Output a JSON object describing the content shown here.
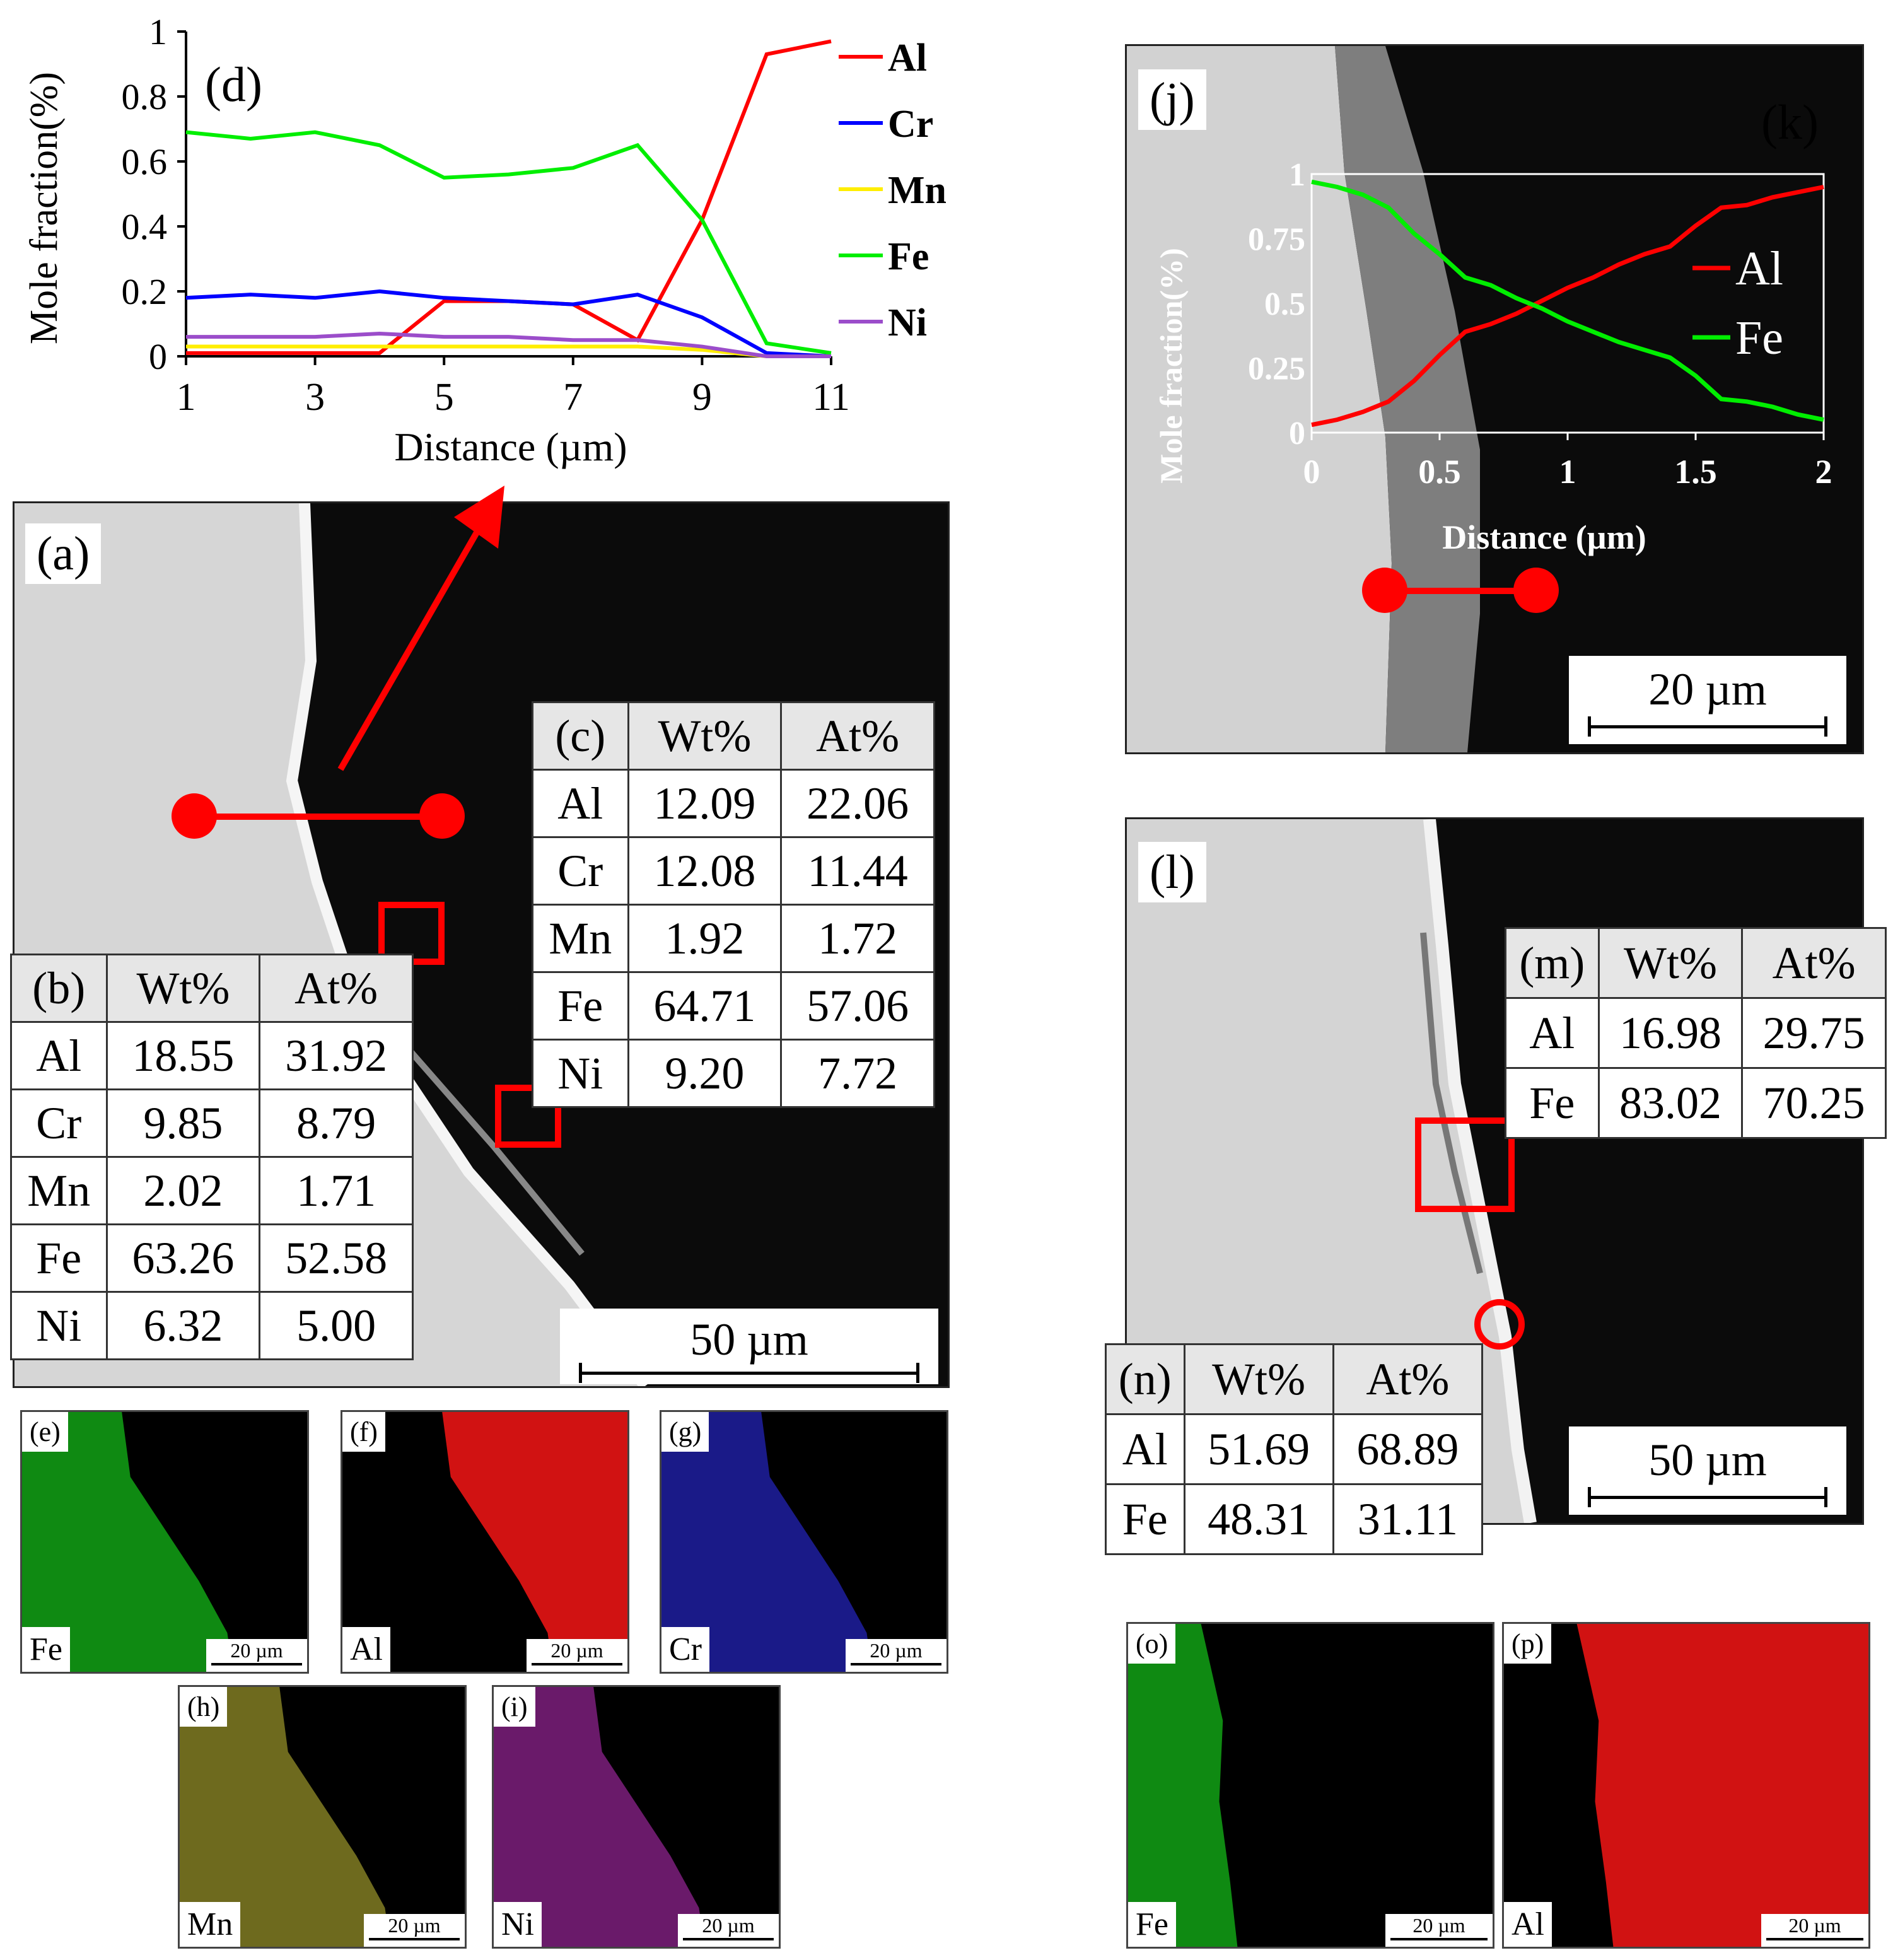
{
  "chart_data": [
    {
      "type": "line",
      "panel": "(d)",
      "xlabel": "Distance (µm)",
      "ylabel": "Mole fraction(%)",
      "xlim": [
        1,
        11
      ],
      "ylim": [
        0,
        1
      ],
      "x_ticks": [
        "1",
        "3",
        "5",
        "7",
        "9",
        "11"
      ],
      "y_ticks": [
        "0",
        "0.2",
        "0.4",
        "0.6",
        "0.8",
        "1"
      ],
      "x": [
        1,
        2,
        3,
        4,
        5,
        6,
        7,
        8,
        9,
        10,
        11
      ],
      "series": [
        {
          "name": "Al",
          "color": "#ff0000",
          "values": [
            0.01,
            0.01,
            0.01,
            0.01,
            0.17,
            0.17,
            0.16,
            0.05,
            0.42,
            0.93,
            0.97
          ]
        },
        {
          "name": "Cr",
          "color": "#0000ff",
          "values": [
            0.18,
            0.19,
            0.18,
            0.2,
            0.18,
            0.17,
            0.16,
            0.19,
            0.12,
            0.01,
            0.0
          ]
        },
        {
          "name": "Mn",
          "color": "#ffee00",
          "values": [
            0.03,
            0.03,
            0.03,
            0.03,
            0.03,
            0.03,
            0.03,
            0.03,
            0.02,
            0.0,
            0.0
          ]
        },
        {
          "name": "Fe",
          "color": "#00ee00",
          "values": [
            0.69,
            0.67,
            0.69,
            0.65,
            0.55,
            0.56,
            0.58,
            0.65,
            0.42,
            0.04,
            0.01
          ]
        },
        {
          "name": "Ni",
          "color": "#9b4dca",
          "values": [
            0.06,
            0.06,
            0.06,
            0.07,
            0.06,
            0.06,
            0.05,
            0.05,
            0.03,
            0.0,
            0.0
          ]
        }
      ]
    },
    {
      "type": "line",
      "panel": "(k)",
      "xlabel": "Distance (µm)",
      "ylabel": "Mole fraction(%)",
      "xlim": [
        0,
        2
      ],
      "ylim": [
        0,
        1
      ],
      "x_ticks": [
        "0",
        "0.5",
        "1",
        "1.5",
        "2"
      ],
      "y_ticks": [
        "0",
        "0.25",
        "0.5",
        "0.75",
        "1"
      ],
      "x": [
        0,
        0.1,
        0.2,
        0.3,
        0.4,
        0.5,
        0.6,
        0.7,
        0.8,
        0.9,
        1.0,
        1.1,
        1.2,
        1.3,
        1.4,
        1.5,
        1.6,
        1.7,
        1.8,
        1.9,
        2.0
      ],
      "series": [
        {
          "name": "Al",
          "color": "#ff0000",
          "values": [
            0.03,
            0.05,
            0.08,
            0.12,
            0.2,
            0.3,
            0.39,
            0.42,
            0.46,
            0.51,
            0.56,
            0.6,
            0.65,
            0.69,
            0.72,
            0.8,
            0.87,
            0.88,
            0.91,
            0.93,
            0.95
          ]
        },
        {
          "name": "Fe",
          "color": "#00ee00",
          "values": [
            0.97,
            0.95,
            0.92,
            0.87,
            0.77,
            0.69,
            0.6,
            0.57,
            0.52,
            0.48,
            0.43,
            0.39,
            0.35,
            0.32,
            0.29,
            0.22,
            0.13,
            0.12,
            0.1,
            0.07,
            0.05
          ]
        }
      ]
    }
  ],
  "panels": {
    "a": {
      "label": "(a)",
      "scale": "50 µm"
    },
    "b": {
      "label": "(b)",
      "headers": [
        "Wt%",
        "At%"
      ],
      "rows": [
        [
          "Al",
          "18.55",
          "31.92"
        ],
        [
          "Cr",
          "9.85",
          "8.79"
        ],
        [
          "Mn",
          "2.02",
          "1.71"
        ],
        [
          "Fe",
          "63.26",
          "52.58"
        ],
        [
          "Ni",
          "6.32",
          "5.00"
        ]
      ]
    },
    "c": {
      "label": "(c)",
      "headers": [
        "Wt%",
        "At%"
      ],
      "rows": [
        [
          "Al",
          "12.09",
          "22.06"
        ],
        [
          "Cr",
          "12.08",
          "11.44"
        ],
        [
          "Mn",
          "1.92",
          "1.72"
        ],
        [
          "Fe",
          "64.71",
          "57.06"
        ],
        [
          "Ni",
          "9.20",
          "7.72"
        ]
      ]
    },
    "j": {
      "label": "(j)",
      "scale": "20 µm"
    },
    "l": {
      "label": "(l)",
      "scale": "50 µm"
    },
    "m": {
      "label": "(m)",
      "headers": [
        "Wt%",
        "At%"
      ],
      "rows": [
        [
          "Al",
          "16.98",
          "29.75"
        ],
        [
          "Fe",
          "83.02",
          "70.25"
        ]
      ]
    },
    "n": {
      "label": "(n)",
      "headers": [
        "Wt%",
        "At%"
      ],
      "rows": [
        [
          "Al",
          "51.69",
          "68.89"
        ],
        [
          "Fe",
          "48.31",
          "31.11"
        ]
      ]
    }
  },
  "maps": [
    {
      "label": "(e)",
      "element": "Fe",
      "color": "#0f8a12",
      "scale": "20 µm"
    },
    {
      "label": "(f)",
      "element": "Al",
      "color": "#d11212",
      "scale": "20 µm"
    },
    {
      "label": "(g)",
      "element": "Cr",
      "color": "#1a1a88",
      "scale": "20 µm"
    },
    {
      "label": "(h)",
      "element": "Mn",
      "color": "#6e6a1e",
      "scale": "20 µm"
    },
    {
      "label": "(i)",
      "element": "Ni",
      "color": "#6a1a6a",
      "scale": "20 µm"
    },
    {
      "label": "(o)",
      "element": "Fe",
      "color": "#0f8a12",
      "scale": "20 µm"
    },
    {
      "label": "(p)",
      "element": "Al",
      "color": "#d11212",
      "scale": "20 µm"
    }
  ]
}
